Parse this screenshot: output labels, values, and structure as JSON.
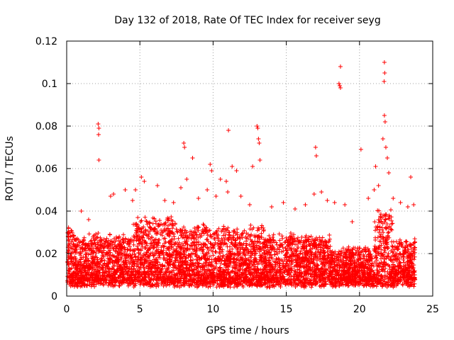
{
  "chart_data": {
    "type": "scatter",
    "title": "Day 132 of 2018, Rate Of TEC Index for receiver seyg",
    "xlabel": "GPS time / hours",
    "ylabel": "ROTI / TECUs",
    "xlim": [
      0,
      25
    ],
    "ylim": [
      0,
      0.12
    ],
    "xticks": [
      0,
      5,
      10,
      15,
      20,
      25
    ],
    "xtick_labels": [
      "0",
      "5",
      "10",
      "15",
      "20",
      "25"
    ],
    "yticks": [
      0,
      0.02,
      0.04,
      0.06,
      0.08,
      0.1,
      0.12
    ],
    "ytick_labels": [
      "0",
      "0.02",
      "0.04",
      "0.06",
      "0.08",
      "0.1",
      "0.12"
    ],
    "grid": true,
    "marker": "plus",
    "color": "#ff0000",
    "series": [
      {
        "name": "ROTI",
        "points": [
          [
            2.15,
            0.081
          ],
          [
            2.2,
            0.079
          ],
          [
            2.18,
            0.076
          ],
          [
            2.2,
            0.064
          ],
          [
            3.2,
            0.048
          ],
          [
            4.0,
            0.05
          ],
          [
            4.7,
            0.05
          ],
          [
            5.1,
            0.056
          ],
          [
            5.3,
            0.054
          ],
          [
            6.2,
            0.052
          ],
          [
            7.8,
            0.051
          ],
          [
            8.0,
            0.072
          ],
          [
            8.05,
            0.07
          ],
          [
            8.6,
            0.065
          ],
          [
            8.2,
            0.055
          ],
          [
            9.8,
            0.062
          ],
          [
            9.9,
            0.059
          ],
          [
            10.5,
            0.055
          ],
          [
            10.9,
            0.054
          ],
          [
            11.3,
            0.061
          ],
          [
            11.6,
            0.059
          ],
          [
            12.7,
            0.061
          ],
          [
            13.0,
            0.08
          ],
          [
            13.05,
            0.079
          ],
          [
            13.1,
            0.074
          ],
          [
            13.15,
            0.072
          ],
          [
            13.2,
            0.064
          ],
          [
            11.05,
            0.078
          ],
          [
            17.0,
            0.07
          ],
          [
            17.05,
            0.066
          ],
          [
            18.7,
            0.108
          ],
          [
            18.6,
            0.1
          ],
          [
            18.65,
            0.099
          ],
          [
            18.7,
            0.098
          ],
          [
            20.1,
            0.069
          ],
          [
            21.1,
            0.061
          ],
          [
            21.6,
            0.074
          ],
          [
            21.7,
            0.11
          ],
          [
            21.72,
            0.105
          ],
          [
            21.68,
            0.101
          ],
          [
            21.7,
            0.085
          ],
          [
            21.75,
            0.082
          ],
          [
            21.8,
            0.07
          ],
          [
            21.9,
            0.065
          ],
          [
            22.0,
            0.058
          ],
          [
            23.5,
            0.056
          ],
          [
            1.0,
            0.04
          ],
          [
            1.5,
            0.036
          ],
          [
            3.0,
            0.047
          ],
          [
            4.5,
            0.045
          ],
          [
            6.7,
            0.045
          ],
          [
            7.3,
            0.044
          ],
          [
            9.0,
            0.046
          ],
          [
            9.6,
            0.05
          ],
          [
            10.2,
            0.047
          ],
          [
            11.0,
            0.049
          ],
          [
            11.9,
            0.047
          ],
          [
            12.5,
            0.043
          ],
          [
            14.0,
            0.042
          ],
          [
            14.8,
            0.044
          ],
          [
            15.6,
            0.041
          ],
          [
            16.3,
            0.043
          ],
          [
            16.9,
            0.048
          ],
          [
            17.4,
            0.049
          ],
          [
            17.8,
            0.045
          ],
          [
            18.3,
            0.044
          ],
          [
            19.0,
            0.043
          ],
          [
            19.5,
            0.035
          ],
          [
            20.6,
            0.046
          ],
          [
            21.0,
            0.05
          ],
          [
            21.3,
            0.052
          ],
          [
            22.3,
            0.046
          ],
          [
            22.8,
            0.044
          ],
          [
            23.3,
            0.042
          ],
          [
            23.7,
            0.043
          ]
        ]
      }
    ]
  }
}
